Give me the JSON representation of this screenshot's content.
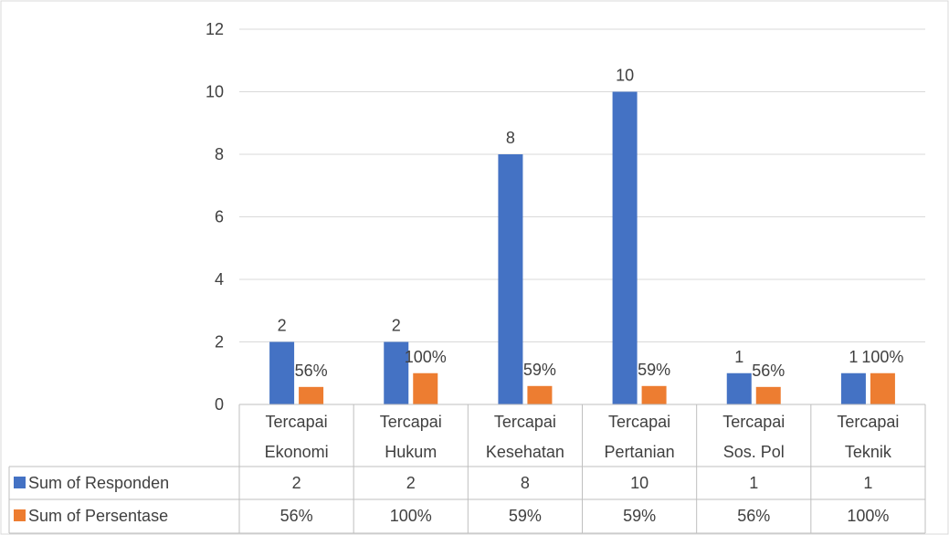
{
  "chart_data": {
    "type": "bar",
    "categories": [
      [
        "Tercapai",
        "Ekonomi"
      ],
      [
        "Tercapai",
        "Hukum"
      ],
      [
        "Tercapai",
        "Kesehatan"
      ],
      [
        "Tercapai",
        "Pertanian"
      ],
      [
        "Tercapai",
        "Sos. Pol"
      ],
      [
        "Tercapai",
        "Teknik"
      ]
    ],
    "series": [
      {
        "name": "Sum of  Responden",
        "values": [
          2,
          2,
          8,
          10,
          1,
          1
        ],
        "labels": [
          "2",
          "2",
          "8",
          "10",
          "1",
          "1"
        ],
        "color": "#4472C4"
      },
      {
        "name": "Sum of Persentase",
        "values": [
          0.56,
          1.0,
          0.59,
          0.59,
          0.56,
          1.0
        ],
        "labels": [
          "56%",
          "100%",
          "59%",
          "59%",
          "56%",
          "100%"
        ],
        "color": "#ED7D31"
      }
    ],
    "ylim": [
      0,
      12
    ],
    "yticks": [
      "0",
      "2",
      "4",
      "6",
      "8",
      "10",
      "12"
    ],
    "grid": true,
    "legend": "data-table-bottom"
  }
}
